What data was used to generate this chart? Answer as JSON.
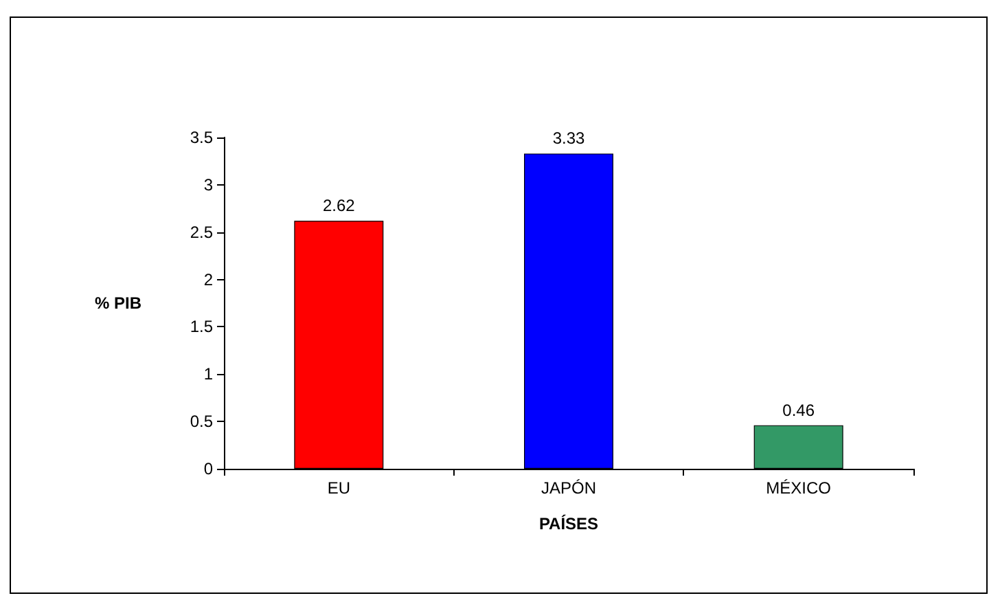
{
  "chart_data": {
    "type": "bar",
    "xlabel": "PAÍSES",
    "ylabel": "% PIB",
    "categories": [
      "EU",
      "JAPÓN",
      "MÉXICO"
    ],
    "values": [
      2.62,
      3.33,
      0.46
    ],
    "colors": [
      "#ff0000",
      "#0000ff",
      "#339966"
    ],
    "ylim": [
      0,
      3.5
    ],
    "yticks": [
      0,
      0.5,
      1,
      1.5,
      2,
      2.5,
      3,
      3.5
    ],
    "grid": false,
    "data_labels": true
  }
}
